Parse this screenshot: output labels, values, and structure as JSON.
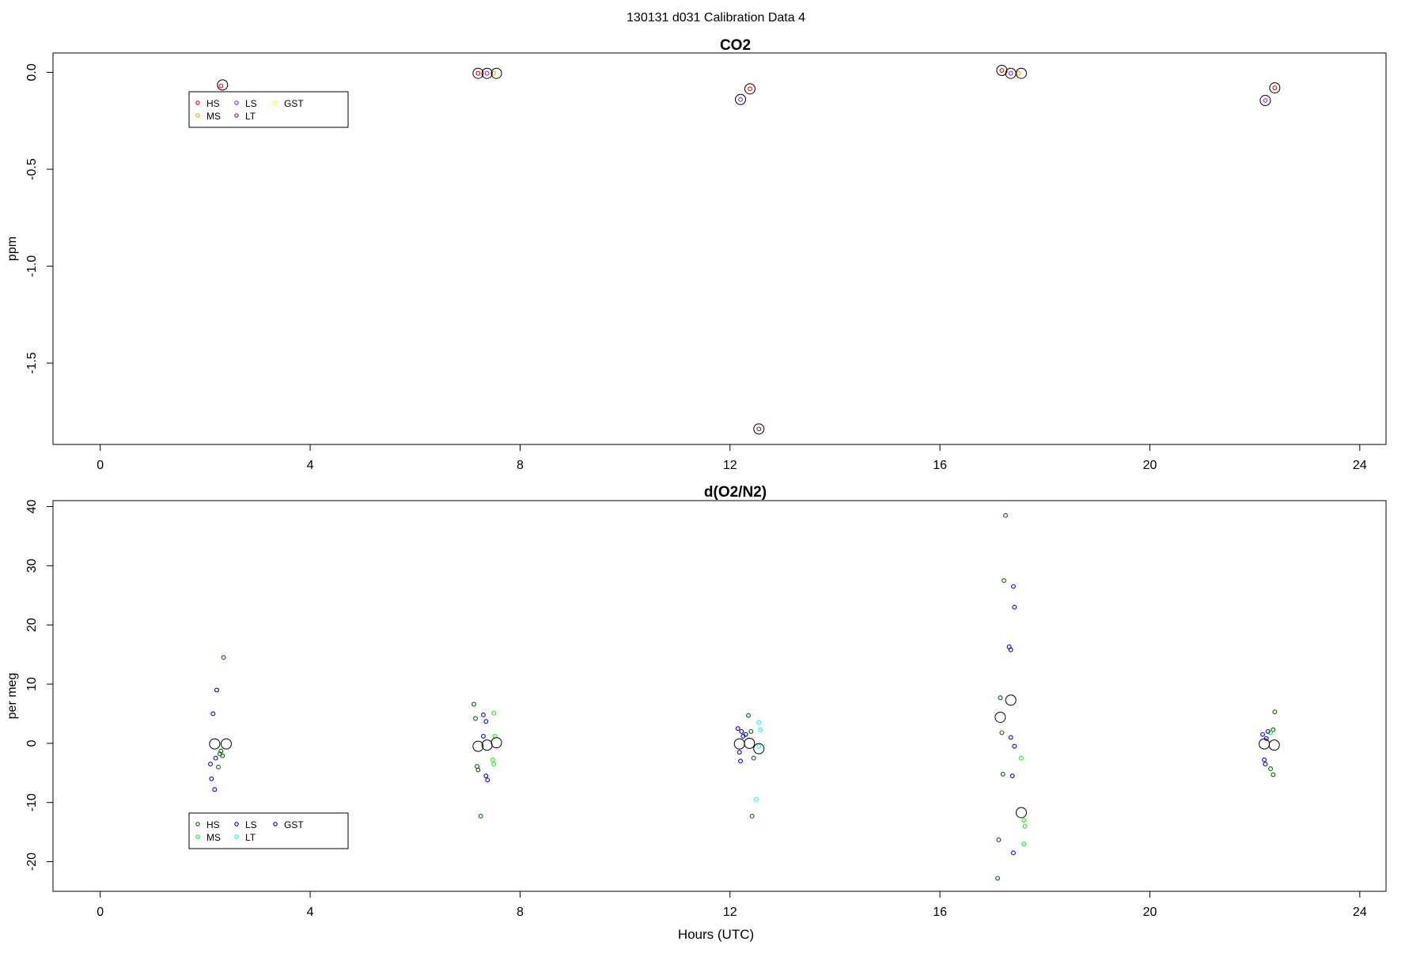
{
  "main_title": "130131   d031   Calibration Data 4",
  "chart_data": [
    {
      "type": "scatter",
      "title": "CO2",
      "xlabel": "",
      "ylabel": "ppm",
      "xlim": [
        -0.9,
        24.5
      ],
      "ylim": [
        -1.92,
        0.1
      ],
      "x_ticks": [
        0,
        4,
        8,
        12,
        16,
        20,
        24
      ],
      "y_ticks": [
        0.0,
        -0.5,
        -1.0,
        -1.5
      ],
      "y_tick_labels": [
        "0.0",
        "-0.5",
        "-1.0",
        "-1.5"
      ],
      "grid": false,
      "legend": {
        "placement": "top-left",
        "entries": [
          {
            "label": "HS",
            "color": "#ff0000"
          },
          {
            "label": "MS",
            "color": "#ffa500"
          },
          {
            "label": "LS",
            "color": "#a020f0"
          },
          {
            "label": "LT",
            "color": "#8b2252"
          },
          {
            "label": "GST",
            "color": "#ffff00"
          }
        ]
      },
      "series": [
        {
          "name": "HS",
          "color": "#ff0000",
          "points": [
            [
              2.3,
              -0.07
            ],
            [
              7.2,
              -0.005
            ],
            [
              12.38,
              -0.085
            ],
            [
              17.18,
              0.01
            ],
            [
              22.38,
              -0.08
            ]
          ]
        },
        {
          "name": "MS",
          "color": "#ffa500",
          "points": [
            [
              7.5,
              -0.005
            ],
            [
              17.5,
              -0.005
            ]
          ]
        },
        {
          "name": "LS",
          "color": "#a020f0",
          "points": [
            [
              7.37,
              -0.005
            ],
            [
              12.2,
              -0.14
            ],
            [
              17.35,
              -0.005
            ],
            [
              22.2,
              -0.145
            ]
          ]
        },
        {
          "name": "LT",
          "color": "#8b2252",
          "points": [
            [
              12.55,
              -1.84
            ]
          ]
        },
        {
          "name": "GST",
          "color": "#ffff00",
          "points": []
        }
      ],
      "means": [
        [
          2.33,
          -0.065
        ],
        [
          7.2,
          -0.005
        ],
        [
          7.37,
          -0.005
        ],
        [
          7.55,
          -0.005
        ],
        [
          12.2,
          -0.14
        ],
        [
          12.38,
          -0.085
        ],
        [
          12.55,
          -1.84
        ],
        [
          17.18,
          0.01
        ],
        [
          17.35,
          -0.005
        ],
        [
          17.55,
          -0.005
        ],
        [
          22.2,
          -0.145
        ],
        [
          22.38,
          -0.08
        ]
      ]
    },
    {
      "type": "scatter",
      "title": "d(O2/N2)",
      "xlabel": "Hours (UTC)",
      "ylabel": "per meg",
      "xlim": [
        -0.9,
        24.5
      ],
      "ylim": [
        -25,
        41
      ],
      "x_ticks": [
        0,
        4,
        8,
        12,
        16,
        20,
        24
      ],
      "y_ticks": [
        40,
        30,
        20,
        10,
        0,
        -10,
        -20
      ],
      "y_tick_labels": [
        "40",
        "30",
        "20",
        "10",
        "0",
        "-10",
        "-20"
      ],
      "grid": false,
      "legend": {
        "placement": "bottom-left",
        "entries": [
          {
            "label": "HS",
            "color": "#006400"
          },
          {
            "label": "MS",
            "color": "#00ff00"
          },
          {
            "label": "LS",
            "color": "#0000ff"
          },
          {
            "label": "LT",
            "color": "#00ffff"
          },
          {
            "label": "GST",
            "color": "#00008b"
          }
        ]
      },
      "series": [
        {
          "name": "HS",
          "color": "#006400",
          "points": [
            [
              2.35,
              14.5
            ],
            [
              2.28,
              -1.8
            ],
            [
              2.33,
              -2.1
            ],
            [
              2.25,
              -4.0
            ],
            [
              2.3,
              -1.3
            ],
            [
              7.12,
              6.6
            ],
            [
              7.15,
              4.2
            ],
            [
              7.18,
              -3.9
            ],
            [
              7.2,
              -4.5
            ],
            [
              7.25,
              -12.3
            ],
            [
              12.35,
              4.7
            ],
            [
              12.4,
              2.0
            ],
            [
              12.42,
              -12.3
            ],
            [
              12.45,
              -2.5
            ],
            [
              17.15,
              7.7
            ],
            [
              17.18,
              1.8
            ],
            [
              17.2,
              -5.2
            ],
            [
              17.22,
              27.5
            ],
            [
              17.12,
              -16.3
            ],
            [
              17.1,
              -22.8
            ],
            [
              17.25,
              38.5
            ],
            [
              22.38,
              5.3
            ],
            [
              22.35,
              2.3
            ],
            [
              22.3,
              -4.3
            ],
            [
              22.35,
              -5.3
            ]
          ]
        },
        {
          "name": "MS",
          "color": "#00ff00",
          "points": [
            [
              7.5,
              5.1
            ],
            [
              7.48,
              -2.8
            ],
            [
              7.5,
              -3.5
            ],
            [
              7.52,
              1.2
            ],
            [
              17.55,
              -2.5
            ],
            [
              17.6,
              -13.0
            ],
            [
              17.6,
              -17.0
            ],
            [
              17.62,
              -14.0
            ],
            [
              22.3,
              1.8
            ]
          ]
        },
        {
          "name": "LS",
          "color": "#0000ff",
          "points": [
            [
              2.15,
              5.0
            ],
            [
              2.2,
              -2.5
            ],
            [
              2.12,
              -6.0
            ],
            [
              2.18,
              -7.8
            ],
            [
              2.1,
              -3.5
            ],
            [
              7.3,
              4.8
            ],
            [
              7.35,
              3.7
            ],
            [
              7.35,
              -5.5
            ],
            [
              7.38,
              -6.2
            ],
            [
              7.3,
              1.2
            ],
            [
              12.15,
              2.5
            ],
            [
              12.2,
              -3.0
            ],
            [
              12.25,
              1.2
            ],
            [
              12.18,
              -1.5
            ],
            [
              17.32,
              16.3
            ],
            [
              17.35,
              15.8
            ],
            [
              17.4,
              26.5
            ],
            [
              17.42,
              23.0
            ],
            [
              17.38,
              -5.5
            ],
            [
              17.35,
              1.0
            ],
            [
              17.4,
              -18.5
            ],
            [
              17.42,
              -0.5
            ],
            [
              22.15,
              1.5
            ],
            [
              22.2,
              -3.5
            ],
            [
              22.18,
              -2.8
            ],
            [
              22.25,
              2.0
            ]
          ]
        },
        {
          "name": "LT",
          "color": "#00ffff",
          "points": [
            [
              12.55,
              3.5
            ],
            [
              12.58,
              2.3
            ],
            [
              12.5,
              -9.5
            ],
            [
              12.55,
              -0.5
            ]
          ]
        },
        {
          "name": "GST",
          "color": "#00008b",
          "points": [
            [
              2.22,
              9.0
            ],
            [
              12.22,
              2.0
            ],
            [
              12.3,
              1.5
            ],
            [
              22.22,
              0.8
            ]
          ]
        }
      ],
      "means": [
        [
          2.18,
          -0.1
        ],
        [
          2.4,
          -0.1
        ],
        [
          7.2,
          -0.5
        ],
        [
          7.37,
          -0.3
        ],
        [
          7.55,
          0.1
        ],
        [
          12.18,
          -0.1
        ],
        [
          12.37,
          0.0
        ],
        [
          12.55,
          -0.9
        ],
        [
          17.15,
          4.4
        ],
        [
          17.35,
          7.3
        ],
        [
          17.55,
          -11.7
        ],
        [
          22.18,
          -0.1
        ],
        [
          22.37,
          -0.3
        ]
      ]
    }
  ]
}
